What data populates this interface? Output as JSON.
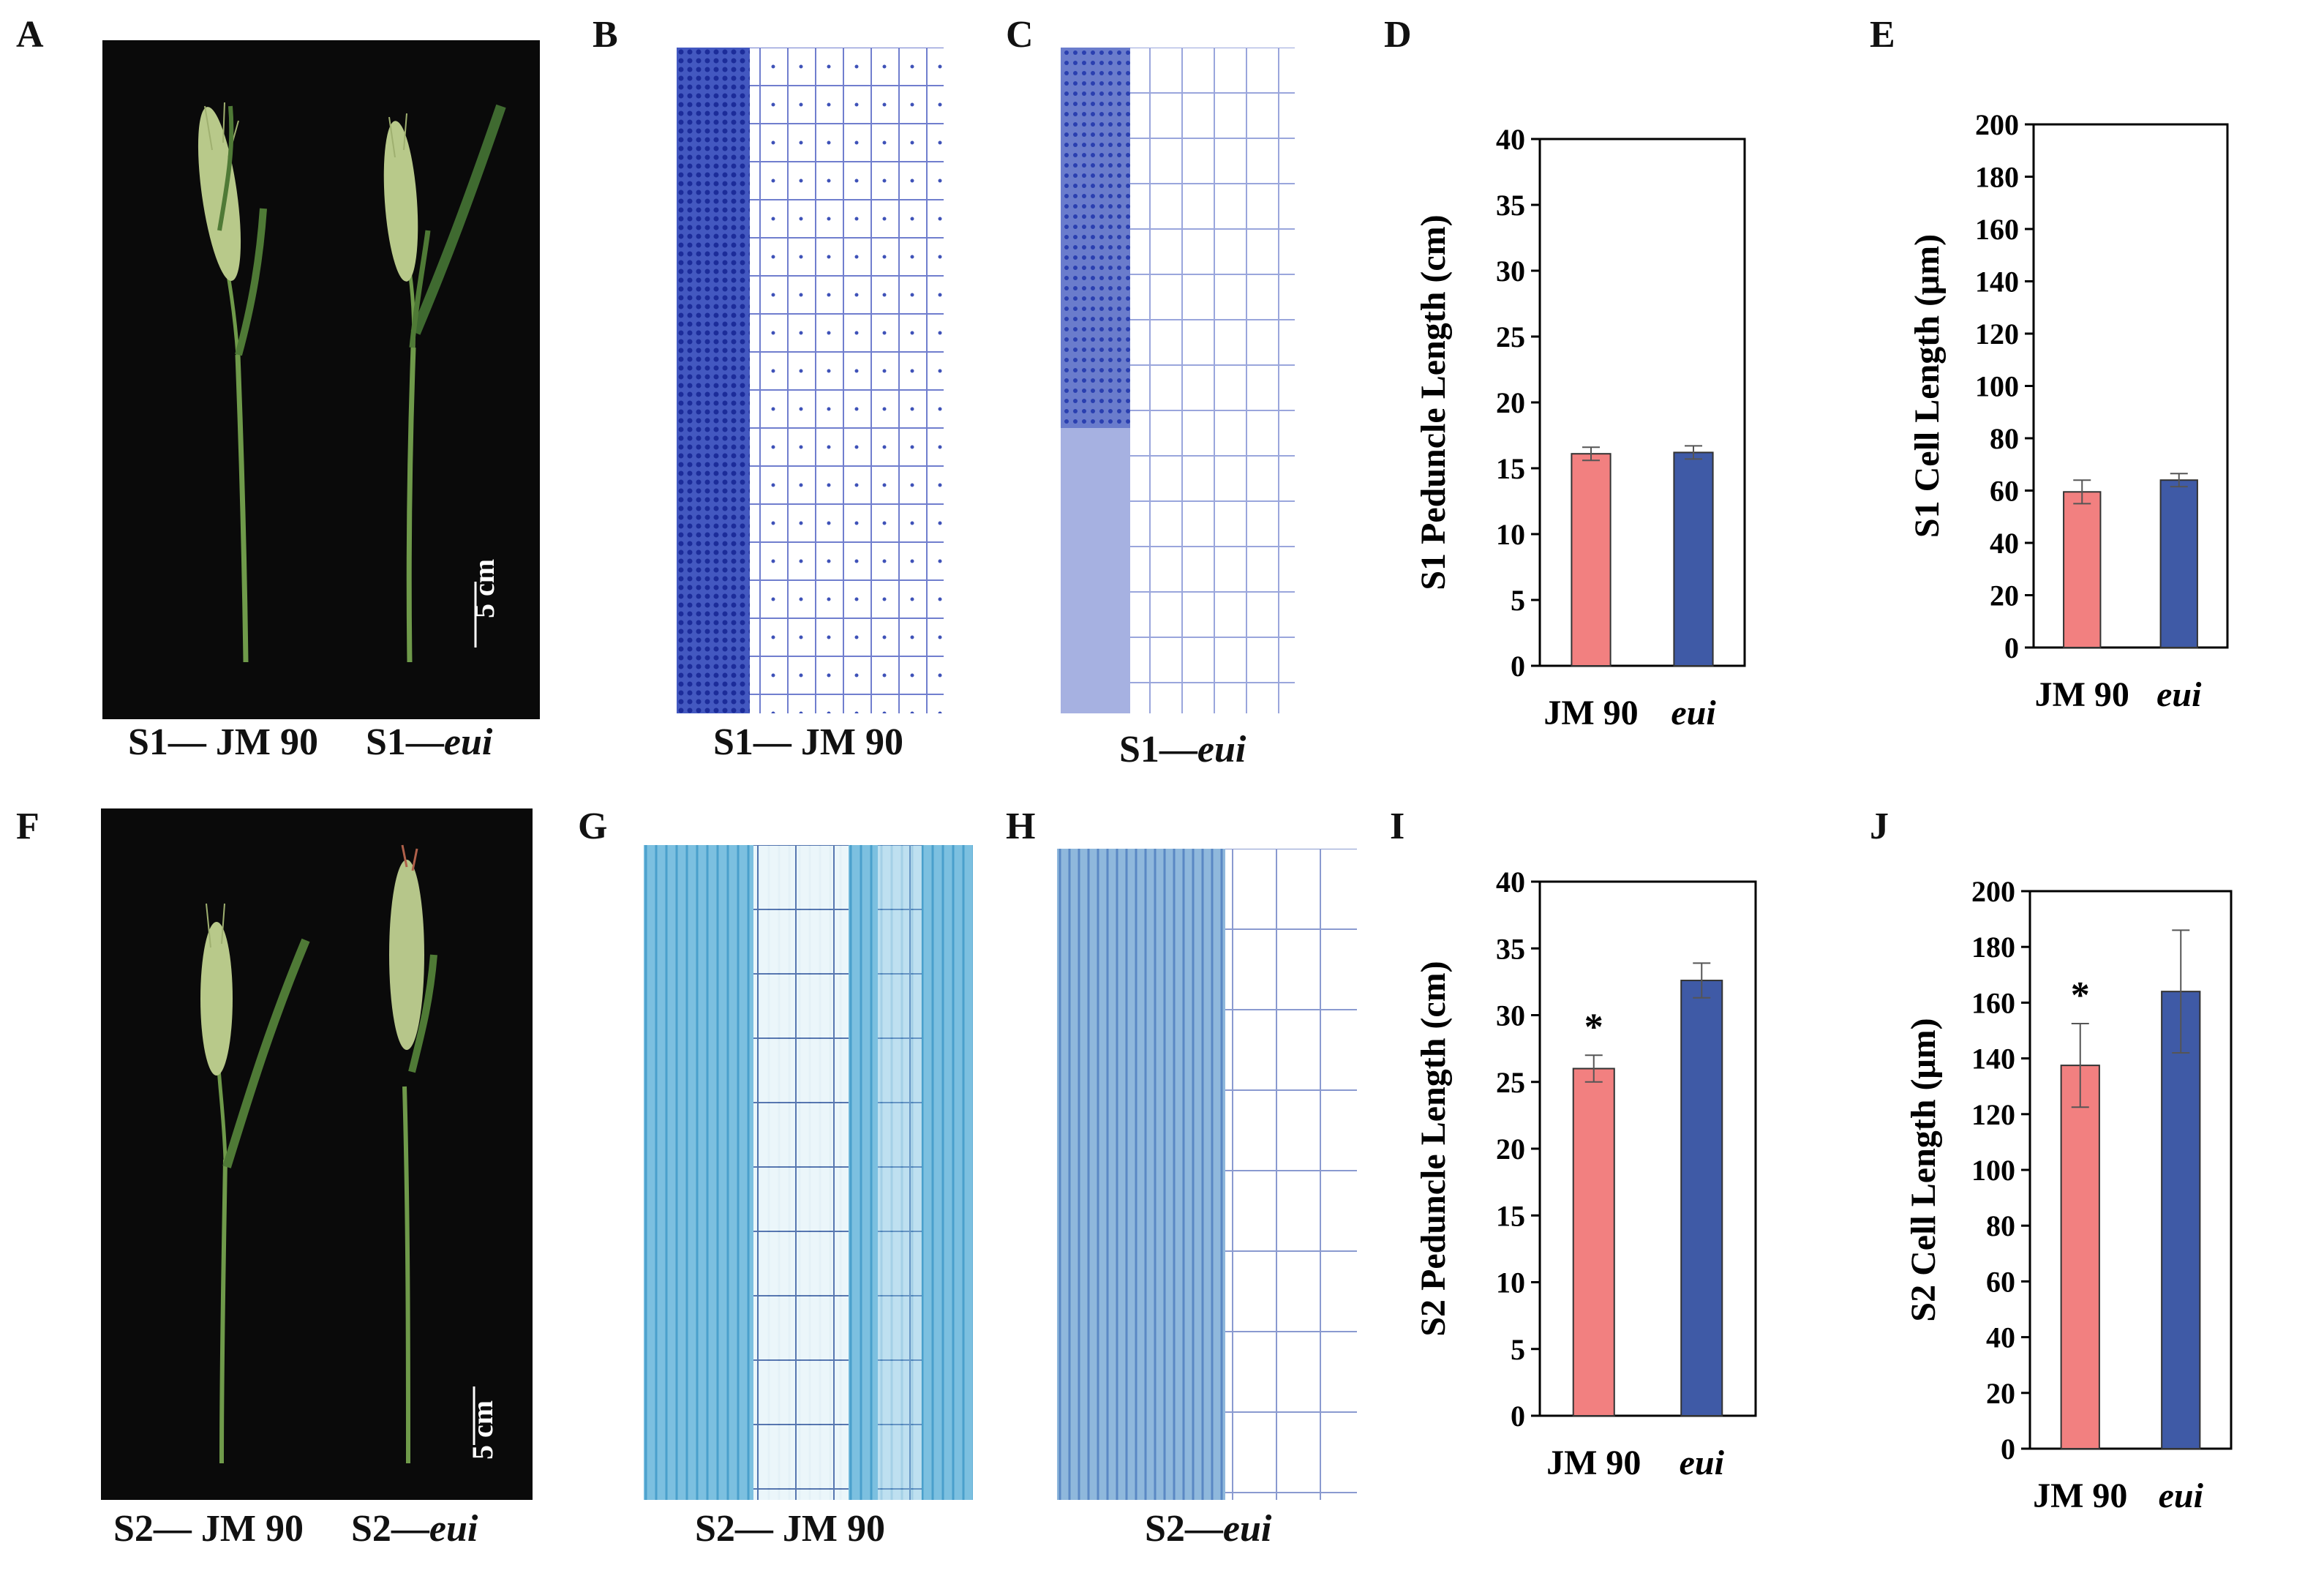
{
  "panel_letters": [
    "A",
    "B",
    "C",
    "D",
    "E",
    "F",
    "G",
    "H",
    "I",
    "J"
  ],
  "colors": {
    "jm90": "#f28080",
    "eui": "#3f5aa6",
    "stem": "#6f9a4a",
    "spike": "#b8c98a",
    "stain_dark": "#2a3fb0",
    "stain_light": "#5fa8d3"
  },
  "photos": {
    "A": {
      "scale": "5 cm",
      "caption_left": "S1— JM 90",
      "caption_right_prefix": "S1—",
      "caption_right_italic": "eui"
    },
    "F": {
      "scale": "5 cm",
      "caption_left": "S2— JM 90",
      "caption_right_prefix": "S2—",
      "caption_right_italic": "eui"
    }
  },
  "micrographs": {
    "B": {
      "caption": "S1— JM 90"
    },
    "C": {
      "caption_prefix": "S1—",
      "caption_italic": "eui"
    },
    "G": {
      "caption": "S2— JM 90"
    },
    "H": {
      "caption_prefix": "S2—",
      "caption_italic": "eui"
    }
  },
  "chart_data": [
    {
      "panel": "D",
      "type": "bar",
      "categories": [
        "JM 90",
        "eui"
      ],
      "values": [
        16.1,
        16.2
      ],
      "errors": [
        0.5,
        0.5
      ],
      "significance": [
        "",
        ""
      ],
      "ylabel_prefix": "S1",
      "ylabel": "Peduncle  Length (cm)",
      "ylim": [
        0,
        40
      ],
      "yticks": [
        0,
        5,
        10,
        15,
        20,
        25,
        30,
        35,
        40
      ]
    },
    {
      "panel": "E",
      "type": "bar",
      "categories": [
        "JM 90",
        "eui"
      ],
      "values": [
        59.5,
        64
      ],
      "errors": [
        4.5,
        2.5
      ],
      "significance": [
        "",
        ""
      ],
      "ylabel_prefix": "S1",
      "ylabel": "Cell Length (μm)",
      "ylim": [
        0,
        200
      ],
      "yticks": [
        0,
        20,
        40,
        60,
        80,
        100,
        120,
        140,
        160,
        180,
        200
      ]
    },
    {
      "panel": "I",
      "type": "bar",
      "categories": [
        "JM 90",
        "eui"
      ],
      "values": [
        26,
        32.6
      ],
      "errors": [
        1.0,
        1.3
      ],
      "significance": [
        "*",
        ""
      ],
      "ylabel_prefix": "S2",
      "ylabel": "Peduncle  Length (cm)",
      "ylim": [
        0,
        40
      ],
      "yticks": [
        0,
        5,
        10,
        15,
        20,
        25,
        30,
        35,
        40
      ]
    },
    {
      "panel": "J",
      "type": "bar",
      "categories": [
        "JM 90",
        "eui"
      ],
      "values": [
        137.5,
        164
      ],
      "errors": [
        15,
        22
      ],
      "significance": [
        "*",
        ""
      ],
      "ylabel_prefix": "S2",
      "ylabel": "Cell Length (μm)",
      "ylim": [
        0,
        200
      ],
      "yticks": [
        0,
        20,
        40,
        60,
        80,
        100,
        120,
        140,
        160,
        180,
        200
      ]
    }
  ]
}
